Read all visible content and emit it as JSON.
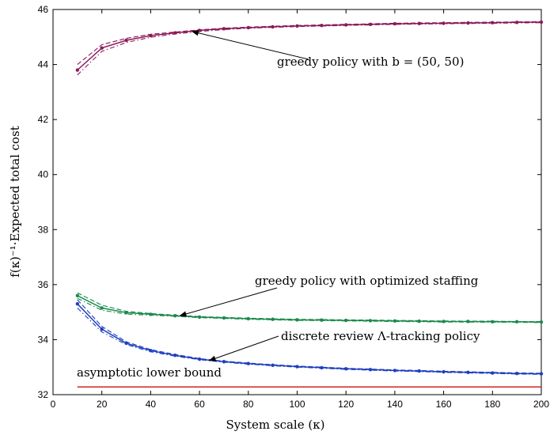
{
  "chart_data": {
    "type": "line",
    "xlabel": "System scale (κ)",
    "ylabel": "f(κ)⁻¹·Expected total cost",
    "xlim": [
      0,
      200
    ],
    "ylim": [
      32,
      46
    ],
    "xticks": [
      "0",
      "20",
      "40",
      "60",
      "80",
      "100",
      "120",
      "140",
      "160",
      "180",
      "200"
    ],
    "yticks": [
      "32",
      "34",
      "36",
      "38",
      "40",
      "42",
      "44",
      "46"
    ],
    "grid": false,
    "x": [
      10,
      20,
      30,
      40,
      50,
      60,
      70,
      80,
      90,
      100,
      110,
      120,
      130,
      140,
      150,
      160,
      170,
      180,
      190,
      200
    ],
    "series": [
      {
        "name": "greedy policy with b = (50, 50)",
        "color": "#8b1a5a",
        "values": [
          43.8,
          44.6,
          44.88,
          45.05,
          45.15,
          45.24,
          45.3,
          45.34,
          45.37,
          45.4,
          45.42,
          45.44,
          45.46,
          45.48,
          45.49,
          45.5,
          45.51,
          45.52,
          45.53,
          45.54
        ],
        "band_upper": [
          44.0,
          44.72,
          44.95,
          45.1,
          45.18,
          45.26,
          45.32,
          45.36,
          45.39,
          45.42,
          45.44,
          45.46,
          45.48,
          45.5,
          45.51,
          45.52,
          45.53,
          45.54,
          45.55,
          45.56
        ],
        "band_lower": [
          43.62,
          44.48,
          44.8,
          44.99,
          45.11,
          45.2,
          45.27,
          45.32,
          45.35,
          45.38,
          45.4,
          45.42,
          45.44,
          45.46,
          45.47,
          45.48,
          45.49,
          45.5,
          45.51,
          45.52
        ]
      },
      {
        "name": "greedy policy with optimized staffing",
        "color": "#1a8a4a",
        "values": [
          35.6,
          35.15,
          34.98,
          34.92,
          34.87,
          34.82,
          34.79,
          34.76,
          34.74,
          34.72,
          34.71,
          34.7,
          34.69,
          34.68,
          34.67,
          34.66,
          34.66,
          34.65,
          34.65,
          34.64
        ],
        "band_upper": [
          35.7,
          35.25,
          35.03,
          34.95,
          34.89,
          34.84,
          34.81,
          34.78,
          34.76,
          34.74,
          34.73,
          34.72,
          34.71,
          34.7,
          34.69,
          34.68,
          34.67,
          34.67,
          34.66,
          34.66
        ],
        "band_lower": [
          35.5,
          35.07,
          34.93,
          34.89,
          34.85,
          34.8,
          34.77,
          34.74,
          34.72,
          34.7,
          34.69,
          34.68,
          34.67,
          34.66,
          34.65,
          34.64,
          34.64,
          34.63,
          34.63,
          34.62
        ]
      },
      {
        "name": "discrete review Λ-tracking policy",
        "color": "#1f3fbf",
        "values": [
          35.3,
          34.38,
          33.87,
          33.6,
          33.43,
          33.29,
          33.2,
          33.13,
          33.07,
          33.02,
          32.98,
          32.94,
          32.91,
          32.88,
          32.86,
          32.83,
          32.81,
          32.79,
          32.77,
          32.76
        ],
        "band_upper": [
          35.45,
          34.48,
          33.92,
          33.64,
          33.46,
          33.31,
          33.22,
          33.15,
          33.09,
          33.04,
          33.0,
          32.96,
          32.93,
          32.9,
          32.88,
          32.85,
          32.83,
          32.81,
          32.79,
          32.78
        ],
        "band_lower": [
          35.15,
          34.28,
          33.82,
          33.56,
          33.4,
          33.27,
          33.18,
          33.11,
          33.05,
          33.0,
          32.96,
          32.92,
          32.89,
          32.86,
          32.84,
          32.81,
          32.79,
          32.77,
          32.75,
          32.74
        ]
      },
      {
        "name": "asymptotic lower bound",
        "color": "#d42020",
        "x": [
          10,
          200
        ],
        "values": [
          32.28,
          32.28
        ]
      }
    ],
    "annotations": [
      {
        "text": "greedy policy with b = (50, 50)",
        "arrow_to": [
          57,
          45.2
        ]
      },
      {
        "text": "greedy policy with optimized staffing",
        "arrow_to": [
          52,
          34.87
        ]
      },
      {
        "text": "discrete review Λ-tracking policy",
        "arrow_to": [
          64,
          33.24
        ]
      },
      {
        "text": "asymptotic lower bound"
      }
    ]
  }
}
